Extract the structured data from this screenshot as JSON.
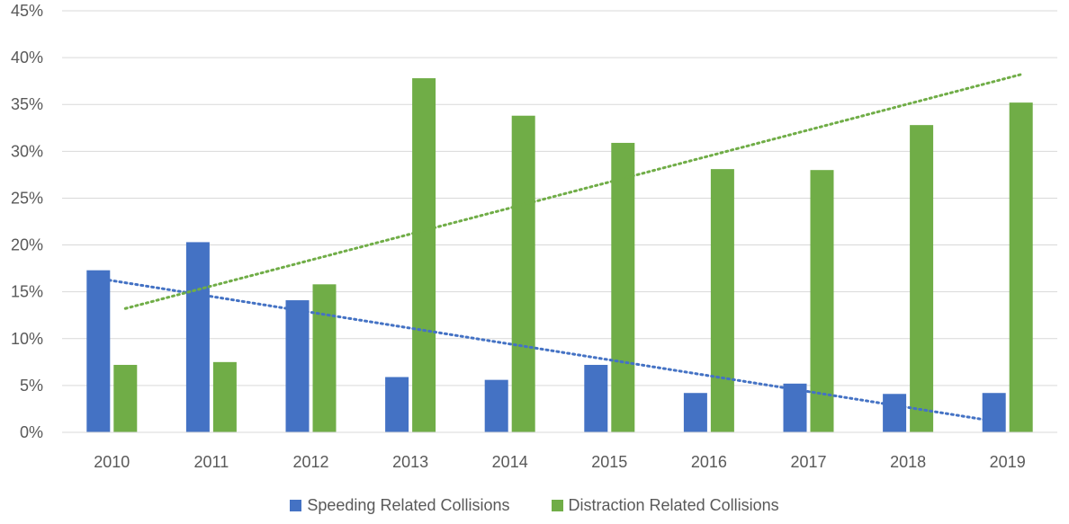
{
  "chart_data": {
    "type": "bar",
    "categories": [
      "2010",
      "2011",
      "2012",
      "2013",
      "2014",
      "2015",
      "2016",
      "2017",
      "2018",
      "2019"
    ],
    "series": [
      {
        "name": "Speeding Related Collisions",
        "color": "#4472C4",
        "values": [
          17.3,
          20.3,
          14.1,
          5.9,
          5.6,
          7.2,
          4.2,
          5.2,
          4.1,
          4.2
        ],
        "trendline": {
          "type": "linear",
          "style": "dotted"
        }
      },
      {
        "name": "Distraction Related Collisions",
        "color": "#70AD47",
        "values": [
          7.2,
          7.5,
          15.8,
          37.8,
          33.8,
          30.9,
          28.1,
          28.0,
          32.8,
          35.2
        ],
        "trendline": {
          "type": "linear",
          "style": "dotted"
        }
      }
    ],
    "y_tick_labels": [
      "0%",
      "5%",
      "10%",
      "15%",
      "20%",
      "25%",
      "30%",
      "35%",
      "40%",
      "45%"
    ],
    "ylim": [
      0,
      45
    ],
    "y_unit": "%",
    "grid": true,
    "legend_position": "bottom",
    "title": "",
    "xlabel": "",
    "ylabel": ""
  }
}
